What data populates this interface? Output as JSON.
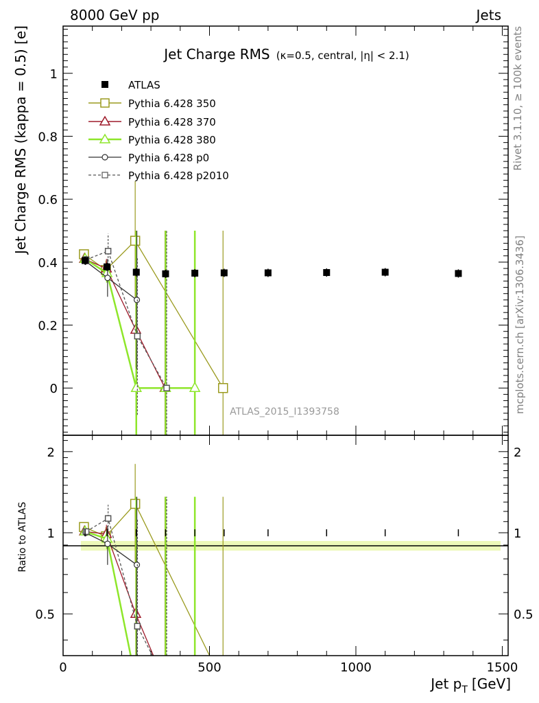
{
  "header": {
    "left": "8000 GeV pp",
    "right": "Jets"
  },
  "side_texts": {
    "rivet": "Rivet 3.1.10, ≥ 100k events",
    "mcplots": "mcplots.cern.ch [arXiv:1306.3436]"
  },
  "chart_data": {
    "type": "scatter",
    "title": "Jet Charge RMS",
    "subtitle": "(κ=0.5, central, |η| < 2.1)",
    "analysis_id": "ATLAS_2015_I1393758",
    "xlabel_main": "Jet p",
    "xlabel_sub": "T",
    "xlabel_unit": "[GeV]",
    "ylabel": "Jet Charge RMS (kappa = 0.5) [e]",
    "ratio_ylabel": "Ratio to ATLAS",
    "xlim": [
      0,
      1520
    ],
    "ylim": [
      -0.15,
      1.15
    ],
    "ratio_ylim": [
      0.35,
      2.3
    ],
    "x_ticks": [
      0,
      500,
      1000,
      1500
    ],
    "y_ticks": [
      0,
      0.2,
      0.4,
      0.6,
      0.8,
      1
    ],
    "y_tick_labels": [
      "0",
      "0.2",
      "0.4",
      "0.6",
      "0.8",
      "1"
    ],
    "ratio_ticks": [
      0.5,
      1,
      2
    ],
    "ratio_tick_labels": [
      "0.5",
      "1",
      "2"
    ],
    "data": {
      "name": "ATLAS",
      "x": [
        75,
        150,
        250,
        350,
        450,
        550,
        700,
        900,
        1100,
        1350
      ],
      "xerr": [
        25,
        50,
        50,
        50,
        50,
        50,
        100,
        100,
        100,
        150
      ],
      "y": [
        0.405,
        0.385,
        0.368,
        0.363,
        0.365,
        0.366,
        0.366,
        0.367,
        0.368,
        0.364
      ]
    },
    "series": [
      {
        "name": "Pythia 6.428 350",
        "color": "#9a9a1e",
        "marker": "square",
        "dash": false,
        "x": [
          75,
          150,
          250,
          550
        ],
        "y": [
          0.425,
          0.375,
          0.468,
          0.0
        ],
        "err": [
          0.015,
          0.03,
          0.19,
          0.5
        ],
        "ratio": [
          1.05,
          0.97,
          1.28,
          0.0
        ],
        "ratio_err": [
          0.04,
          0.08,
          0.52,
          1.36
        ]
      },
      {
        "name": "Pythia 6.428 370",
        "color": "#9e1a2a",
        "marker": "triangle",
        "dash": false,
        "x": [
          75,
          150,
          250,
          350
        ],
        "y": [
          0.41,
          0.38,
          0.185,
          0.0
        ],
        "err": [
          0.012,
          0.03,
          0.12,
          0.5
        ],
        "ratio": [
          1.01,
          0.99,
          0.5,
          0.0
        ],
        "ratio_err": [
          0.03,
          0.08,
          0.32,
          1.36
        ]
      },
      {
        "name": "Pythia 6.428 380",
        "color": "#8ee62a",
        "marker": "triangle",
        "dash": false,
        "x": [
          75,
          150,
          250,
          350,
          450
        ],
        "y": [
          0.41,
          0.365,
          0.0,
          0.0,
          0.0
        ],
        "err": [
          0.012,
          0.03,
          0.5,
          0.5,
          0.5
        ],
        "ratio": [
          1.01,
          0.95,
          0.0,
          0.0,
          0.0
        ],
        "ratio_err": [
          0.03,
          0.08,
          1.36,
          1.36,
          1.36
        ]
      },
      {
        "name": "Pythia 6.428 p0",
        "color": "#333333",
        "marker": "circle",
        "dash": false,
        "x": [
          75,
          150,
          250
        ],
        "y": [
          0.403,
          0.35,
          0.28
        ],
        "err": [
          0.012,
          0.06,
          0.22
        ],
        "ratio": [
          1.0,
          0.91,
          0.76
        ],
        "ratio_err": [
          0.03,
          0.15,
          0.6
        ]
      },
      {
        "name": "Pythia 6.428 p2010",
        "color": "#555555",
        "marker": "square",
        "dash": true,
        "x": [
          75,
          150,
          250,
          350
        ],
        "y": [
          0.408,
          0.435,
          0.165,
          0.0
        ],
        "err": [
          0.012,
          0.055,
          0.25,
          0.5
        ],
        "ratio": [
          1.01,
          1.13,
          0.45,
          0.0
        ],
        "ratio_err": [
          0.03,
          0.14,
          0.68,
          1.36
        ]
      }
    ]
  }
}
